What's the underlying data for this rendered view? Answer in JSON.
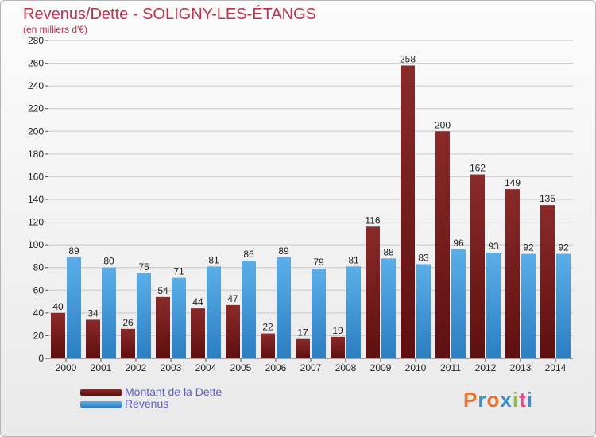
{
  "title": "Revenus/Dette - SOLIGNY-LES-ÉTANGS",
  "subtitle": "(en milliers d'€)",
  "colors": {
    "dette": "#7a1e1e",
    "revenus": "#3d95d6",
    "axis_text": "#222222",
    "grid": "#c8c8c8"
  },
  "chart_data": {
    "type": "bar",
    "title": "Revenus/Dette - SOLIGNY-LES-ÉTANGS",
    "subtitle": "(en milliers d'€)",
    "xlabel": "",
    "ylabel": "",
    "ylim": [
      0,
      280
    ],
    "yticks": [
      0,
      20,
      40,
      60,
      80,
      100,
      120,
      140,
      160,
      180,
      200,
      220,
      240,
      260,
      280
    ],
    "grid": true,
    "legend_position": "bottom-left",
    "categories": [
      "2000",
      "2001",
      "2002",
      "2003",
      "2004",
      "2005",
      "2006",
      "2007",
      "2008",
      "2009",
      "2010",
      "2011",
      "2012",
      "2013",
      "2014"
    ],
    "series": [
      {
        "name": "Montant de la Dette",
        "color": "#7a1e1e",
        "values": [
          40,
          34,
          26,
          54,
          44,
          47,
          22,
          17,
          19,
          116,
          258,
          200,
          162,
          149,
          135
        ]
      },
      {
        "name": "Revenus",
        "color": "#3d95d6",
        "values": [
          89,
          80,
          75,
          71,
          81,
          86,
          89,
          79,
          81,
          88,
          83,
          96,
          93,
          92,
          92
        ]
      }
    ]
  },
  "legend": [
    {
      "label": "Montant de la Dette",
      "color": "#7a1e1e"
    },
    {
      "label": "Revenus",
      "color": "#3d95d6"
    }
  ],
  "logo": {
    "text": "Proxiti",
    "colors": [
      "#e8742c",
      "#3b8fd0",
      "#e8742c",
      "#3b8fd0",
      "#8fc03a",
      "#e84a8c",
      "#3b8fd0"
    ]
  }
}
